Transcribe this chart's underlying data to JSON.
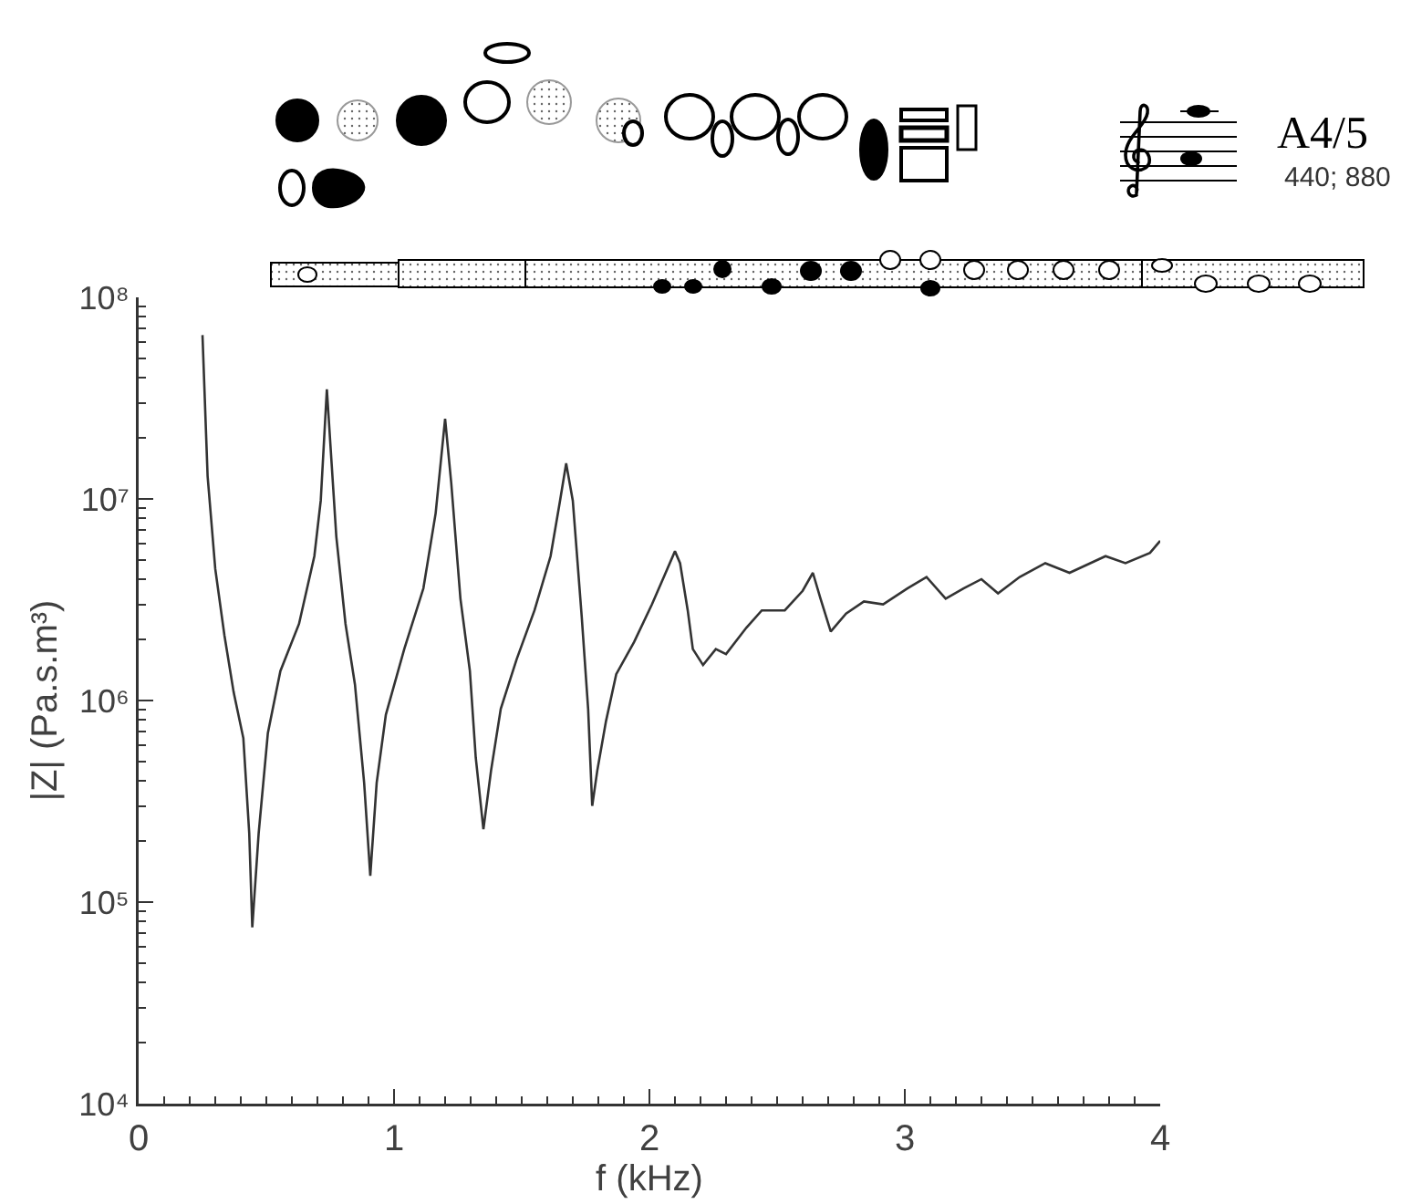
{
  "chart_data": {
    "type": "line",
    "title": "A4/5",
    "subtitle": "440; 880",
    "xlabel": "f (kHz)",
    "ylabel": "|Z| (Pa.s.m³)",
    "x": [
      0.25,
      0.27,
      0.3,
      0.336,
      0.372,
      0.41,
      0.433,
      0.445,
      0.47,
      0.506,
      0.555,
      0.628,
      0.688,
      0.713,
      0.737,
      0.774,
      0.81,
      0.847,
      0.883,
      0.907,
      0.932,
      0.968,
      1.04,
      1.115,
      1.163,
      1.2,
      1.224,
      1.26,
      1.297,
      1.32,
      1.35,
      1.38,
      1.418,
      1.48,
      1.55,
      1.613,
      1.65,
      1.674,
      1.7,
      1.735,
      1.76,
      1.776,
      1.796,
      1.83,
      1.87,
      1.94,
      2.01,
      2.06,
      2.1,
      2.12,
      2.15,
      2.17,
      2.21,
      2.26,
      2.3,
      2.38,
      2.44,
      2.53,
      2.6,
      2.64,
      2.67,
      2.71,
      2.77,
      2.84,
      2.915,
      3.01,
      3.085,
      3.16,
      3.23,
      3.3,
      3.365,
      3.45,
      3.55,
      3.645,
      3.786,
      3.864,
      3.96,
      4.0
    ],
    "values": [
      65000000,
      13000000,
      4500000,
      2100000,
      1100000,
      650000,
      220000,
      75000,
      220000,
      690000,
      1400000,
      2400000,
      5200000,
      9800000,
      35000000,
      6500000,
      2400000,
      1200000,
      390000,
      135000,
      390000,
      850000,
      1800000,
      3600000,
      8500000,
      25000000,
      12000000,
      3200000,
      1400000,
      520000,
      230000,
      450000,
      910000,
      1600000,
      2800000,
      5200000,
      9800000,
      15000000,
      9800000,
      2600000,
      910000,
      300000,
      450000,
      790000,
      1350000,
      1950000,
      3000000,
      4200000,
      5500000,
      4800000,
      2800000,
      1800000,
      1500000,
      1800000,
      1700000,
      2300000,
      2800000,
      2800000,
      3500000,
      4300000,
      3200000,
      2200000,
      2700000,
      3100000,
      3000000,
      3600000,
      4100000,
      3200000,
      3600000,
      4000000,
      3400000,
      4100000,
      4800000,
      4300000,
      5200000,
      4800000,
      5400000,
      6200000
    ],
    "color": "#333333",
    "marker": "none",
    "line_style": "solid",
    "log": true,
    "xlim": [
      0,
      4
    ],
    "ylim": [
      10000,
      100000000
    ],
    "xticks": [
      0,
      {
        "value": 0.1,
        "label": null
      },
      {
        "value": 0.2,
        "label": null
      },
      {
        "value": 0.3,
        "label": null
      },
      {
        "value": 0.4,
        "label": null
      },
      {
        "value": 0.5,
        "label": null
      },
      {
        "value": 0.6,
        "label": null
      },
      {
        "value": 0.7,
        "label": null
      },
      {
        "value": 0.8,
        "label": null
      },
      {
        "value": 0.9,
        "label": null
      },
      1,
      {
        "value": 1.1,
        "label": null
      },
      {
        "value": 1.2,
        "label": null
      },
      {
        "value": 1.3,
        "label": null
      },
      {
        "value": 1.4,
        "label": null
      },
      {
        "value": 1.5,
        "label": null
      },
      {
        "value": 1.6,
        "label": null
      },
      {
        "value": 1.7,
        "label": null
      },
      {
        "value": 1.8,
        "label": null
      },
      {
        "value": 1.9,
        "label": null
      },
      2,
      {
        "value": 2.1,
        "label": null
      },
      {
        "value": 2.2,
        "label": null
      },
      {
        "value": 2.3,
        "label": null
      },
      {
        "value": 2.4,
        "label": null
      },
      {
        "value": 2.5,
        "label": null
      },
      {
        "value": 2.6,
        "label": null
      },
      {
        "value": 2.7,
        "label": null
      },
      {
        "value": 2.8,
        "label": null
      },
      {
        "value": 2.9,
        "label": null
      },
      3,
      {
        "value": 3.1,
        "label": null
      },
      {
        "value": 3.2,
        "label": null
      },
      {
        "value": 3.3,
        "label": null
      },
      {
        "value": 3.4,
        "label": null
      },
      {
        "value": 3.5,
        "label": null
      },
      {
        "value": 3.6,
        "label": null
      },
      {
        "value": 3.7,
        "label": null
      },
      {
        "value": 3.8,
        "label": null
      },
      {
        "value": 3.9,
        "label": null
      },
      4
    ],
    "yticks": [
      {
        "value": 10000,
        "label": "10⁴"
      },
      {
        "value": 20000,
        "label": null
      },
      {
        "value": 30000,
        "label": null
      },
      {
        "value": 40000,
        "label": null
      },
      {
        "value": 50000,
        "label": null
      },
      {
        "value": 60000,
        "label": null
      },
      {
        "value": 70000,
        "label": null
      },
      {
        "value": 80000,
        "label": null
      },
      {
        "value": 90000,
        "label": null
      },
      {
        "value": 100000,
        "label": "10⁵"
      },
      {
        "value": 200000,
        "label": null
      },
      {
        "value": 300000,
        "label": null
      },
      {
        "value": 400000,
        "label": null
      },
      {
        "value": 500000,
        "label": null
      },
      {
        "value": 600000,
        "label": null
      },
      {
        "value": 700000,
        "label": null
      },
      {
        "value": 800000,
        "label": null
      },
      {
        "value": 900000,
        "label": null
      },
      {
        "value": 1000000,
        "label": "10⁶"
      },
      {
        "value": 2000000,
        "label": null
      },
      {
        "value": 3000000,
        "label": null
      },
      {
        "value": 4000000,
        "label": null
      },
      {
        "value": 5000000,
        "label": null
      },
      {
        "value": 6000000,
        "label": null
      },
      {
        "value": 7000000,
        "label": null
      },
      {
        "value": 8000000,
        "label": null
      },
      {
        "value": 9000000,
        "label": null
      },
      {
        "value": 10000000,
        "label": "10⁷"
      },
      {
        "value": 20000000,
        "label": null
      },
      {
        "value": 30000000,
        "label": null
      },
      {
        "value": 40000000,
        "label": null
      },
      {
        "value": 50000000,
        "label": null
      },
      {
        "value": 60000000,
        "label": null
      },
      {
        "value": 70000000,
        "label": null
      },
      {
        "value": 80000000,
        "label": null
      },
      {
        "value": 90000000,
        "label": null
      },
      {
        "value": 100000000,
        "label": "10⁸"
      }
    ]
  }
}
